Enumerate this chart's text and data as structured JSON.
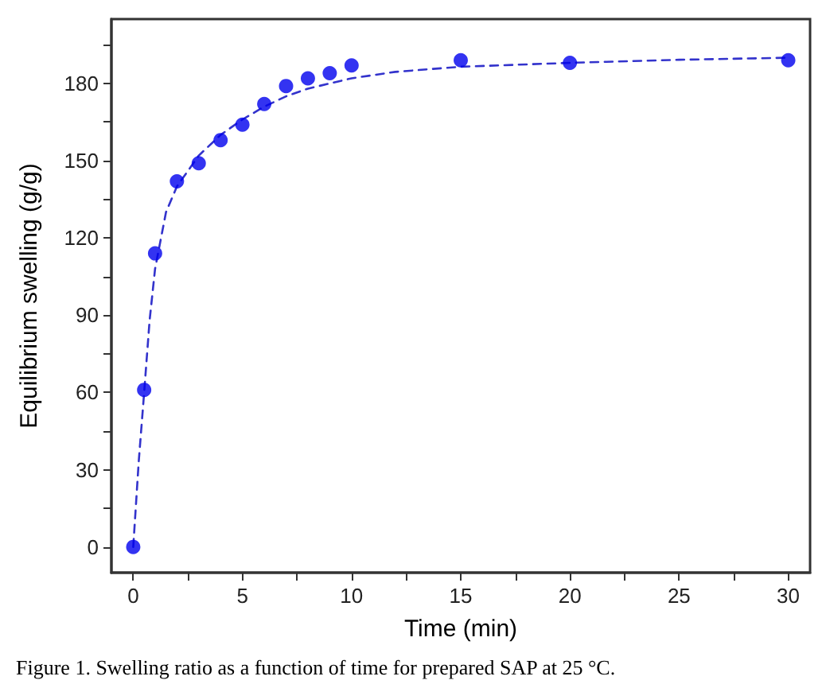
{
  "chart_data": {
    "type": "scatter",
    "xlabel": "Time (min)",
    "ylabel": "Equilibrium swelling (g/g)",
    "annotations": [
      "Figure 1. Swelling ratio as a function of time for prepared SAP at 25 °C."
    ],
    "xlim": [
      -1,
      31
    ],
    "ylim": [
      -10,
      205
    ],
    "xticks": [
      0,
      {
        "value": 2.5,
        "label": null
      },
      5,
      {
        "value": 7.5,
        "label": null
      },
      10,
      {
        "value": 12.5,
        "label": null
      },
      15,
      {
        "value": 17.5,
        "label": null
      },
      20,
      {
        "value": 22.5,
        "label": null
      },
      25,
      {
        "value": 27.5,
        "label": null
      },
      30
    ],
    "yticks": [
      0,
      {
        "value": 15,
        "label": null
      },
      30,
      {
        "value": 45,
        "label": null
      },
      60,
      {
        "value": 75,
        "label": null
      },
      90,
      {
        "value": 105,
        "label": null
      },
      120,
      {
        "value": 135,
        "label": null
      },
      150,
      {
        "value": 165,
        "label": null
      },
      180,
      {
        "value": 195,
        "label": null
      }
    ],
    "grid": false,
    "series": [
      {
        "color": "#0000ee",
        "marker": "circle",
        "x": [
          0,
          0.5,
          1,
          2,
          3,
          4,
          5,
          6,
          7,
          8,
          9,
          10,
          15,
          20,
          30
        ],
        "values": [
          0,
          61,
          114,
          142,
          149,
          158,
          164,
          172,
          179,
          182,
          184,
          187,
          189,
          188,
          189
        ]
      },
      {
        "type": "line",
        "color": "#3333cc",
        "marker": "none",
        "line_style": "dashed",
        "x": [
          0,
          0.25,
          0.5,
          0.75,
          1,
          1.5,
          2,
          3,
          4,
          5,
          6,
          7,
          8,
          10,
          12,
          15,
          20,
          25,
          30
        ],
        "values": [
          0,
          33,
          60,
          88,
          108,
          130,
          140,
          152,
          160,
          166,
          171,
          175,
          178,
          182,
          184.5,
          186.5,
          188,
          189.2,
          190
        ]
      }
    ]
  }
}
